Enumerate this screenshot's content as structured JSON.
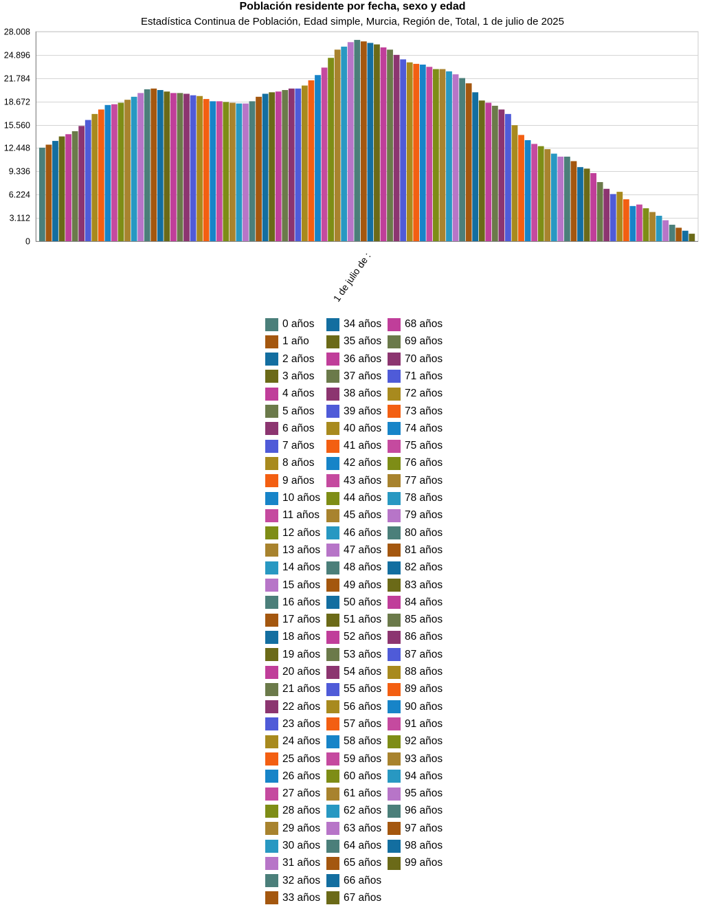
{
  "chart_data": {
    "type": "bar",
    "title": "Población residente por fecha, sexo y edad",
    "subtitle": "Estadística Continua de Población, Edad simple, Murcia, Región de, Total, 1 de julio de 2025",
    "categories": [
      "1 de julio de 2025"
    ],
    "category_label_visible": "1 de julio de :",
    "ylim": [
      0,
      28008
    ],
    "yticks": [
      "0",
      "3.112",
      "6.224",
      "9.336",
      "12.448",
      "15.560",
      "18.672",
      "21.784",
      "24.896",
      "28.008"
    ],
    "ytick_values": [
      0,
      3112,
      6224,
      9336,
      12448,
      15560,
      18672,
      21784,
      24896,
      28008
    ],
    "grid": true,
    "legend_position": "bottom",
    "series": [
      {
        "name": "0 años",
        "values": [
          12500
        ],
        "color": "#4b7f7a"
      },
      {
        "name": "1 año",
        "values": [
          12900
        ],
        "color": "#a4570f"
      },
      {
        "name": "2 años",
        "values": [
          13400
        ],
        "color": "#136ea0"
      },
      {
        "name": "3 años",
        "values": [
          14000
        ],
        "color": "#6b6a18"
      },
      {
        "name": "4 años",
        "values": [
          14300
        ],
        "color": "#c03e9a"
      },
      {
        "name": "5 años",
        "values": [
          14700
        ],
        "color": "#6b7a4a"
      },
      {
        "name": "6 años",
        "values": [
          15400
        ],
        "color": "#8c3570"
      },
      {
        "name": "7 años",
        "values": [
          16200
        ],
        "color": "#4f5bd8"
      },
      {
        "name": "8 años",
        "values": [
          17000
        ],
        "color": "#a88a1e"
      },
      {
        "name": "9 años",
        "values": [
          17600
        ],
        "color": "#f35f12"
      },
      {
        "name": "10 años",
        "values": [
          18200
        ],
        "color": "#1784c8"
      },
      {
        "name": "11 años",
        "values": [
          18300
        ],
        "color": "#c54a9f"
      },
      {
        "name": "12 años",
        "values": [
          18500
        ],
        "color": "#7e8d16"
      },
      {
        "name": "13 años",
        "values": [
          18900
        ],
        "color": "#a8832e"
      },
      {
        "name": "14 años",
        "values": [
          19300
        ],
        "color": "#2898c2"
      },
      {
        "name": "15 años",
        "values": [
          19800
        ],
        "color": "#b775c8"
      },
      {
        "name": "16 años",
        "values": [
          20300
        ],
        "color": "#4b7f7a"
      },
      {
        "name": "17 años",
        "values": [
          20400
        ],
        "color": "#a4570f"
      },
      {
        "name": "18 años",
        "values": [
          20200
        ],
        "color": "#136ea0"
      },
      {
        "name": "19 años",
        "values": [
          20000
        ],
        "color": "#6b6a18"
      },
      {
        "name": "20 años",
        "values": [
          19800
        ],
        "color": "#c03e9a"
      },
      {
        "name": "21 años",
        "values": [
          19800
        ],
        "color": "#6b7a4a"
      },
      {
        "name": "22 años",
        "values": [
          19700
        ],
        "color": "#8c3570"
      },
      {
        "name": "23 años",
        "values": [
          19500
        ],
        "color": "#4f5bd8"
      },
      {
        "name": "24 años",
        "values": [
          19400
        ],
        "color": "#a88a1e"
      },
      {
        "name": "25 años",
        "values": [
          19000
        ],
        "color": "#f35f12"
      },
      {
        "name": "26 años",
        "values": [
          18700
        ],
        "color": "#1784c8"
      },
      {
        "name": "27 años",
        "values": [
          18700
        ],
        "color": "#c54a9f"
      },
      {
        "name": "28 años",
        "values": [
          18600
        ],
        "color": "#7e8d16"
      },
      {
        "name": "29 años",
        "values": [
          18500
        ],
        "color": "#a8832e"
      },
      {
        "name": "30 años",
        "values": [
          18400
        ],
        "color": "#2898c2"
      },
      {
        "name": "31 años",
        "values": [
          18400
        ],
        "color": "#b775c8"
      },
      {
        "name": "32 años",
        "values": [
          18700
        ],
        "color": "#4b7f7a"
      },
      {
        "name": "33 años",
        "values": [
          19300
        ],
        "color": "#a4570f"
      },
      {
        "name": "34 años",
        "values": [
          19700
        ],
        "color": "#136ea0"
      },
      {
        "name": "35 años",
        "values": [
          19900
        ],
        "color": "#6b6a18"
      },
      {
        "name": "36 años",
        "values": [
          20000
        ],
        "color": "#c03e9a"
      },
      {
        "name": "37 años",
        "values": [
          20200
        ],
        "color": "#6b7a4a"
      },
      {
        "name": "38 años",
        "values": [
          20400
        ],
        "color": "#8c3570"
      },
      {
        "name": "39 años",
        "values": [
          20400
        ],
        "color": "#4f5bd8"
      },
      {
        "name": "40 años",
        "values": [
          20800
        ],
        "color": "#a88a1e"
      },
      {
        "name": "41 años",
        "values": [
          21500
        ],
        "color": "#f35f12"
      },
      {
        "name": "42 años",
        "values": [
          22200
        ],
        "color": "#1784c8"
      },
      {
        "name": "43 años",
        "values": [
          23200
        ],
        "color": "#c54a9f"
      },
      {
        "name": "44 años",
        "values": [
          24500
        ],
        "color": "#7e8d16"
      },
      {
        "name": "45 años",
        "values": [
          25600
        ],
        "color": "#a8832e"
      },
      {
        "name": "46 años",
        "values": [
          26000
        ],
        "color": "#2898c2"
      },
      {
        "name": "47 años",
        "values": [
          26600
        ],
        "color": "#b775c8"
      },
      {
        "name": "48 años",
        "values": [
          26900
        ],
        "color": "#4b7f7a"
      },
      {
        "name": "49 años",
        "values": [
          26700
        ],
        "color": "#a4570f"
      },
      {
        "name": "50 años",
        "values": [
          26500
        ],
        "color": "#136ea0"
      },
      {
        "name": "51 años",
        "values": [
          26300
        ],
        "color": "#6b6a18"
      },
      {
        "name": "52 años",
        "values": [
          25900
        ],
        "color": "#c03e9a"
      },
      {
        "name": "53 años",
        "values": [
          25600
        ],
        "color": "#6b7a4a"
      },
      {
        "name": "54 años",
        "values": [
          24900
        ],
        "color": "#8c3570"
      },
      {
        "name": "55 años",
        "values": [
          24300
        ],
        "color": "#4f5bd8"
      },
      {
        "name": "56 años",
        "values": [
          23900
        ],
        "color": "#a88a1e"
      },
      {
        "name": "57 años",
        "values": [
          23700
        ],
        "color": "#f35f12"
      },
      {
        "name": "58 años",
        "values": [
          23600
        ],
        "color": "#1784c8"
      },
      {
        "name": "59 años",
        "values": [
          23300
        ],
        "color": "#c54a9f"
      },
      {
        "name": "60 años",
        "values": [
          23000
        ],
        "color": "#7e8d16"
      },
      {
        "name": "61 años",
        "values": [
          23000
        ],
        "color": "#a8832e"
      },
      {
        "name": "62 años",
        "values": [
          22700
        ],
        "color": "#2898c2"
      },
      {
        "name": "63 años",
        "values": [
          22300
        ],
        "color": "#b775c8"
      },
      {
        "name": "64 años",
        "values": [
          21800
        ],
        "color": "#4b7f7a"
      },
      {
        "name": "65 años",
        "values": [
          21100
        ],
        "color": "#a4570f"
      },
      {
        "name": "66 años",
        "values": [
          19900
        ],
        "color": "#136ea0"
      },
      {
        "name": "67 años",
        "values": [
          18800
        ],
        "color": "#6b6a18"
      },
      {
        "name": "68 años",
        "values": [
          18500
        ],
        "color": "#c03e9a"
      },
      {
        "name": "69 años",
        "values": [
          18100
        ],
        "color": "#6b7a4a"
      },
      {
        "name": "70 años",
        "values": [
          17600
        ],
        "color": "#8c3570"
      },
      {
        "name": "71 años",
        "values": [
          17000
        ],
        "color": "#4f5bd8"
      },
      {
        "name": "72 años",
        "values": [
          15500
        ],
        "color": "#a88a1e"
      },
      {
        "name": "73 años",
        "values": [
          14200
        ],
        "color": "#f35f12"
      },
      {
        "name": "74 años",
        "values": [
          13500
        ],
        "color": "#1784c8"
      },
      {
        "name": "75 años",
        "values": [
          13000
        ],
        "color": "#c54a9f"
      },
      {
        "name": "76 años",
        "values": [
          12700
        ],
        "color": "#7e8d16"
      },
      {
        "name": "77 años",
        "values": [
          12300
        ],
        "color": "#a8832e"
      },
      {
        "name": "78 años",
        "values": [
          11700
        ],
        "color": "#2898c2"
      },
      {
        "name": "79 años",
        "values": [
          11300
        ],
        "color": "#b775c8"
      },
      {
        "name": "80 años",
        "values": [
          11300
        ],
        "color": "#4b7f7a"
      },
      {
        "name": "81 años",
        "values": [
          10700
        ],
        "color": "#a4570f"
      },
      {
        "name": "82 años",
        "values": [
          9900
        ],
        "color": "#136ea0"
      },
      {
        "name": "83 años",
        "values": [
          9700
        ],
        "color": "#6b6a18"
      },
      {
        "name": "84 años",
        "values": [
          9100
        ],
        "color": "#c03e9a"
      },
      {
        "name": "85 años",
        "values": [
          7900
        ],
        "color": "#6b7a4a"
      },
      {
        "name": "86 años",
        "values": [
          7000
        ],
        "color": "#8c3570"
      },
      {
        "name": "87 años",
        "values": [
          6300
        ],
        "color": "#4f5bd8"
      },
      {
        "name": "88 años",
        "values": [
          6600
        ],
        "color": "#a88a1e"
      },
      {
        "name": "89 años",
        "values": [
          5600
        ],
        "color": "#f35f12"
      },
      {
        "name": "90 años",
        "values": [
          4700
        ],
        "color": "#1784c8"
      },
      {
        "name": "91 años",
        "values": [
          4900
        ],
        "color": "#c54a9f"
      },
      {
        "name": "92 años",
        "values": [
          4400
        ],
        "color": "#7e8d16"
      },
      {
        "name": "93 años",
        "values": [
          3900
        ],
        "color": "#a8832e"
      },
      {
        "name": "94 años",
        "values": [
          3400
        ],
        "color": "#2898c2"
      },
      {
        "name": "95 años",
        "values": [
          2800
        ],
        "color": "#b775c8"
      },
      {
        "name": "96 años",
        "values": [
          2200
        ],
        "color": "#4b7f7a"
      },
      {
        "name": "97 años",
        "values": [
          1800
        ],
        "color": "#a4570f"
      },
      {
        "name": "98 años",
        "values": [
          1400
        ],
        "color": "#136ea0"
      },
      {
        "name": "99 años",
        "values": [
          1000
        ],
        "color": "#6b6a18"
      }
    ]
  }
}
